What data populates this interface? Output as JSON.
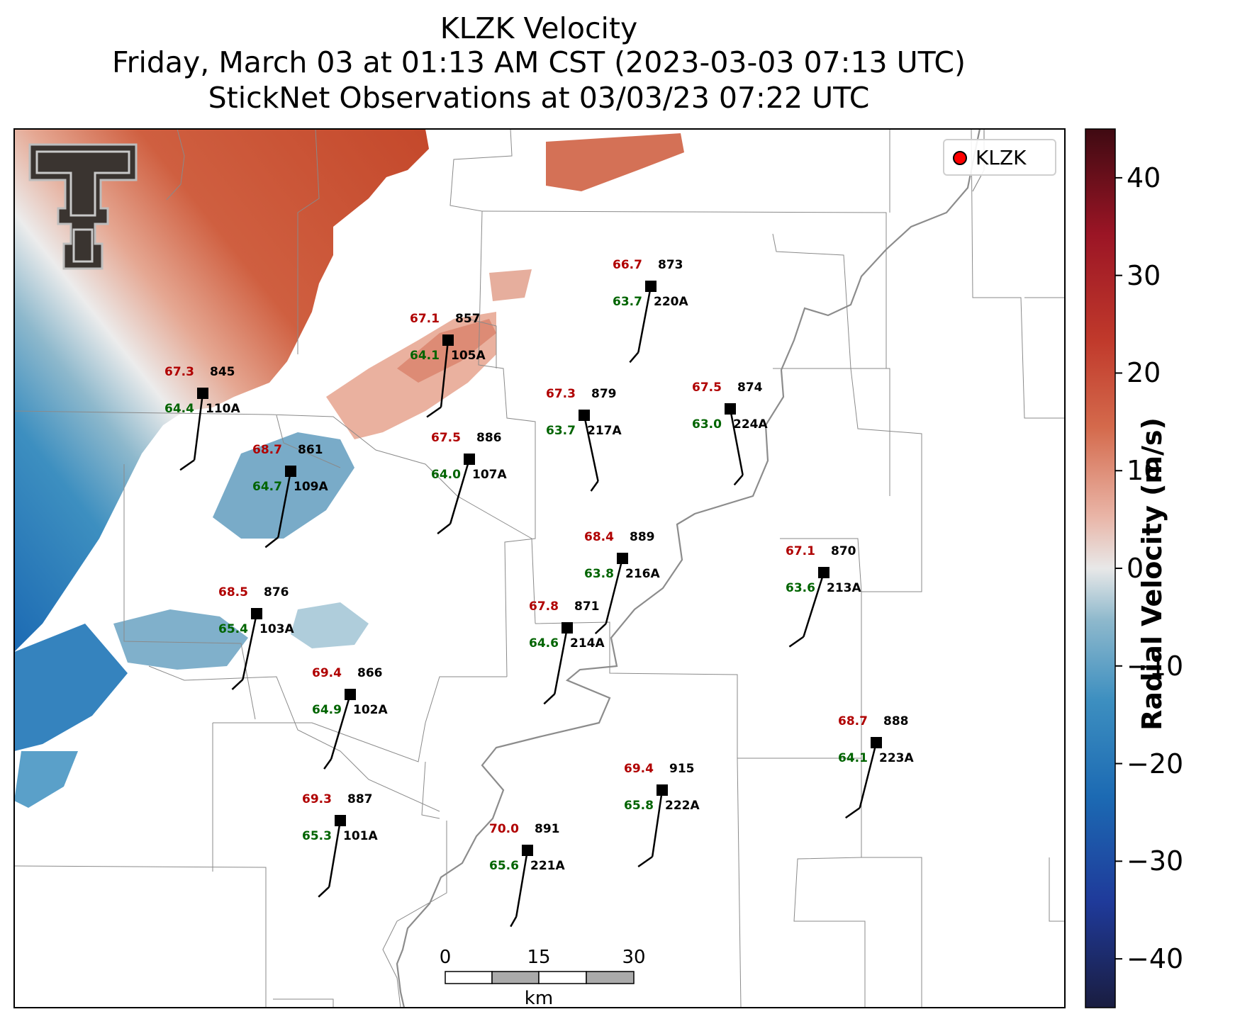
{
  "title": {
    "line1": "KLZK Velocity",
    "line2": "Friday, March 03 at 01:13 AM CST (2023-03-03 07:13 UTC)",
    "line3": "StickNet Observations at 03/03/23 07:22 UTC"
  },
  "legend": {
    "label": "KLZK",
    "marker_color": "#ff0000"
  },
  "colorbar": {
    "title": "Radial Velocity (m/s)",
    "min": -45,
    "max": 45,
    "ticks": [
      {
        "value": 40,
        "label": "40"
      },
      {
        "value": 30,
        "label": "30"
      },
      {
        "value": 20,
        "label": "20"
      },
      {
        "value": 10,
        "label": "10"
      },
      {
        "value": 0,
        "label": "0"
      },
      {
        "value": -10,
        "label": "−10"
      },
      {
        "value": -20,
        "label": "−20"
      },
      {
        "value": -30,
        "label": "−30"
      },
      {
        "value": -40,
        "label": "−40"
      }
    ],
    "colors": [
      "#1a1d40",
      "#1f3a9a",
      "#1c6ab3",
      "#3d8fc0",
      "#8db8cc",
      "#e8e8e8",
      "#e9b4a6",
      "#d46a4c",
      "#c0392b",
      "#9b1525",
      "#3f0a12"
    ]
  },
  "scalebar": {
    "labels": [
      "0",
      "15",
      "30"
    ],
    "unit": "km"
  },
  "logo": "texas-tech-double-t-logo",
  "stations": [
    {
      "id": "110A",
      "temp": "67.3",
      "dew": "64.4",
      "pres": "845"
    },
    {
      "id": "105A",
      "temp": "67.1",
      "dew": "64.1",
      "pres": "857"
    },
    {
      "id": "220A",
      "temp": "66.7",
      "dew": "63.7",
      "pres": "873"
    },
    {
      "id": "109A",
      "temp": "68.7",
      "dew": "64.7",
      "pres": "861"
    },
    {
      "id": "107A",
      "temp": "67.5",
      "dew": "64.0",
      "pres": "886"
    },
    {
      "id": "217A",
      "temp": "67.3",
      "dew": "63.7",
      "pres": "879"
    },
    {
      "id": "224A",
      "temp": "67.5",
      "dew": "63.0",
      "pres": "874"
    },
    {
      "id": "216A",
      "temp": "68.4",
      "dew": "63.8",
      "pres": "889"
    },
    {
      "id": "213A",
      "temp": "67.1",
      "dew": "63.6",
      "pres": "870"
    },
    {
      "id": "103A",
      "temp": "68.5",
      "dew": "65.4",
      "pres": "876"
    },
    {
      "id": "214A",
      "temp": "67.8",
      "dew": "64.6",
      "pres": "871"
    },
    {
      "id": "102A",
      "temp": "69.4",
      "dew": "64.9",
      "pres": "866"
    },
    {
      "id": "223A",
      "temp": "68.7",
      "dew": "64.1",
      "pres": "888"
    },
    {
      "id": "222A",
      "temp": "69.4",
      "dew": "65.8",
      "pres": "915"
    },
    {
      "id": "101A",
      "temp": "69.3",
      "dew": "65.3",
      "pres": "887"
    },
    {
      "id": "221A",
      "temp": "70.0",
      "dew": "65.6",
      "pres": "891"
    }
  ]
}
